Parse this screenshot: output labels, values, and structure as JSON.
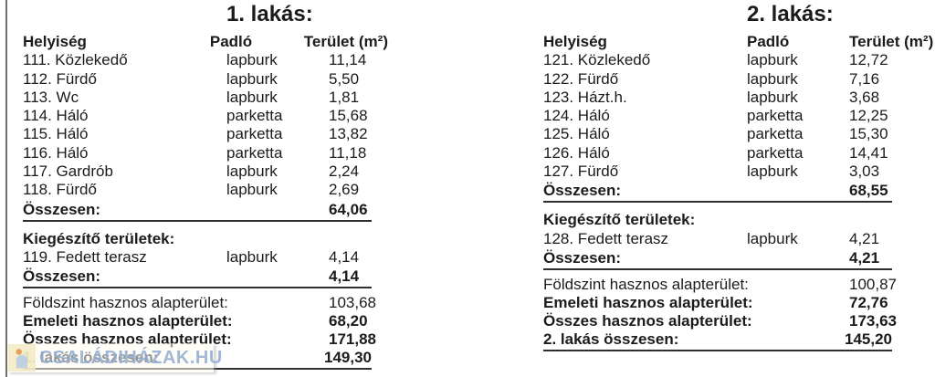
{
  "tables": [
    {
      "title": "1. lakás:",
      "columns": [
        "Helyiség",
        "Padló",
        "Terület (m²)"
      ],
      "rooms": [
        {
          "name": "111. Közlekedő",
          "floor": "lapburk",
          "area": "11,14"
        },
        {
          "name": "112. Fürdő",
          "floor": "lapburk",
          "area": "5,50"
        },
        {
          "name": "113. Wc",
          "floor": "lapburk",
          "area": "1,81"
        },
        {
          "name": "114. Háló",
          "floor": "parketta",
          "area": "15,68"
        },
        {
          "name": "115. Háló",
          "floor": "parketta",
          "area": "13,82"
        },
        {
          "name": "116. Háló",
          "floor": "parketta",
          "area": "11,18"
        },
        {
          "name": "117. Gardrób",
          "floor": "lapburk",
          "area": "2,24"
        },
        {
          "name": "118. Fürdő",
          "floor": "lapburk",
          "area": "2,69"
        }
      ],
      "rooms_total_label": "Összesen:",
      "rooms_total": "64,06",
      "extra_section_label": "Kiegészítő területek:",
      "extra_rooms": [
        {
          "name": "119. Fedett terasz",
          "floor": "lapburk",
          "area": "4,14"
        }
      ],
      "extra_total_label": "Összesen:",
      "extra_total": "4,14",
      "summary": [
        {
          "label": "Földszint hasznos alapterület:",
          "value": "103,68",
          "bold": false,
          "underline": false
        },
        {
          "label": "Emeleti hasznos alapterület:",
          "value": "68,20",
          "bold": true,
          "underline": false
        },
        {
          "label": "Összes hasznos alapterület:",
          "value": "171,88",
          "bold": true,
          "underline": false
        },
        {
          "label": "1. lakás összesen:",
          "value": "149,30",
          "bold": true,
          "underline": true
        }
      ]
    },
    {
      "title": "2. lakás:",
      "columns": [
        "Helyiség",
        "Padló",
        "Terület (m²)"
      ],
      "rooms": [
        {
          "name": "121. Közlekedő",
          "floor": "lapburk",
          "area": "12,72"
        },
        {
          "name": "122. Fürdő",
          "floor": "lapburk",
          "area": "7,16"
        },
        {
          "name": "123. Házt.h.",
          "floor": "lapburk",
          "area": "3,68"
        },
        {
          "name": "124. Háló",
          "floor": "parketta",
          "area": "12,25"
        },
        {
          "name": "125. Háló",
          "floor": "parketta",
          "area": "15,30"
        },
        {
          "name": "126. Háló",
          "floor": "parketta",
          "area": "14,41"
        },
        {
          "name": "127. Fürdő",
          "floor": "lapburk",
          "area": "3,03"
        }
      ],
      "rooms_total_label": "Összesen:",
      "rooms_total": "68,55",
      "extra_section_label": "Kiegészítő területek:",
      "extra_rooms": [
        {
          "name": "128. Fedett terasz",
          "floor": "lapburk",
          "area": "4,21"
        }
      ],
      "extra_total_label": "Összesen:",
      "extra_total": "4,21",
      "summary": [
        {
          "label": "Földszint hasznos alapterület:",
          "value": "100,87",
          "bold": false,
          "underline": false
        },
        {
          "label": "Emeleti hasznos alapterület:",
          "value": "72,76",
          "bold": true,
          "underline": false
        },
        {
          "label": "Összes hasznos alapterület:",
          "value": "173,63",
          "bold": true,
          "underline": false
        },
        {
          "label": "2. lakás összesen:",
          "value": "145,20",
          "bold": true,
          "underline": true
        }
      ]
    }
  ],
  "watermark": {
    "text": "CSALÁDIHÁZAK.HU",
    "icon": "house-icon",
    "icon_bg_color": "#f2e9c0",
    "icon_window_color": "#e2984d",
    "icon_house_color": "#b9cde2",
    "text_color": "#8facd0"
  },
  "colors": {
    "text": "#1b1b1b",
    "rule_line": "#2e2e2e",
    "left_border": "#6e6e6e"
  }
}
